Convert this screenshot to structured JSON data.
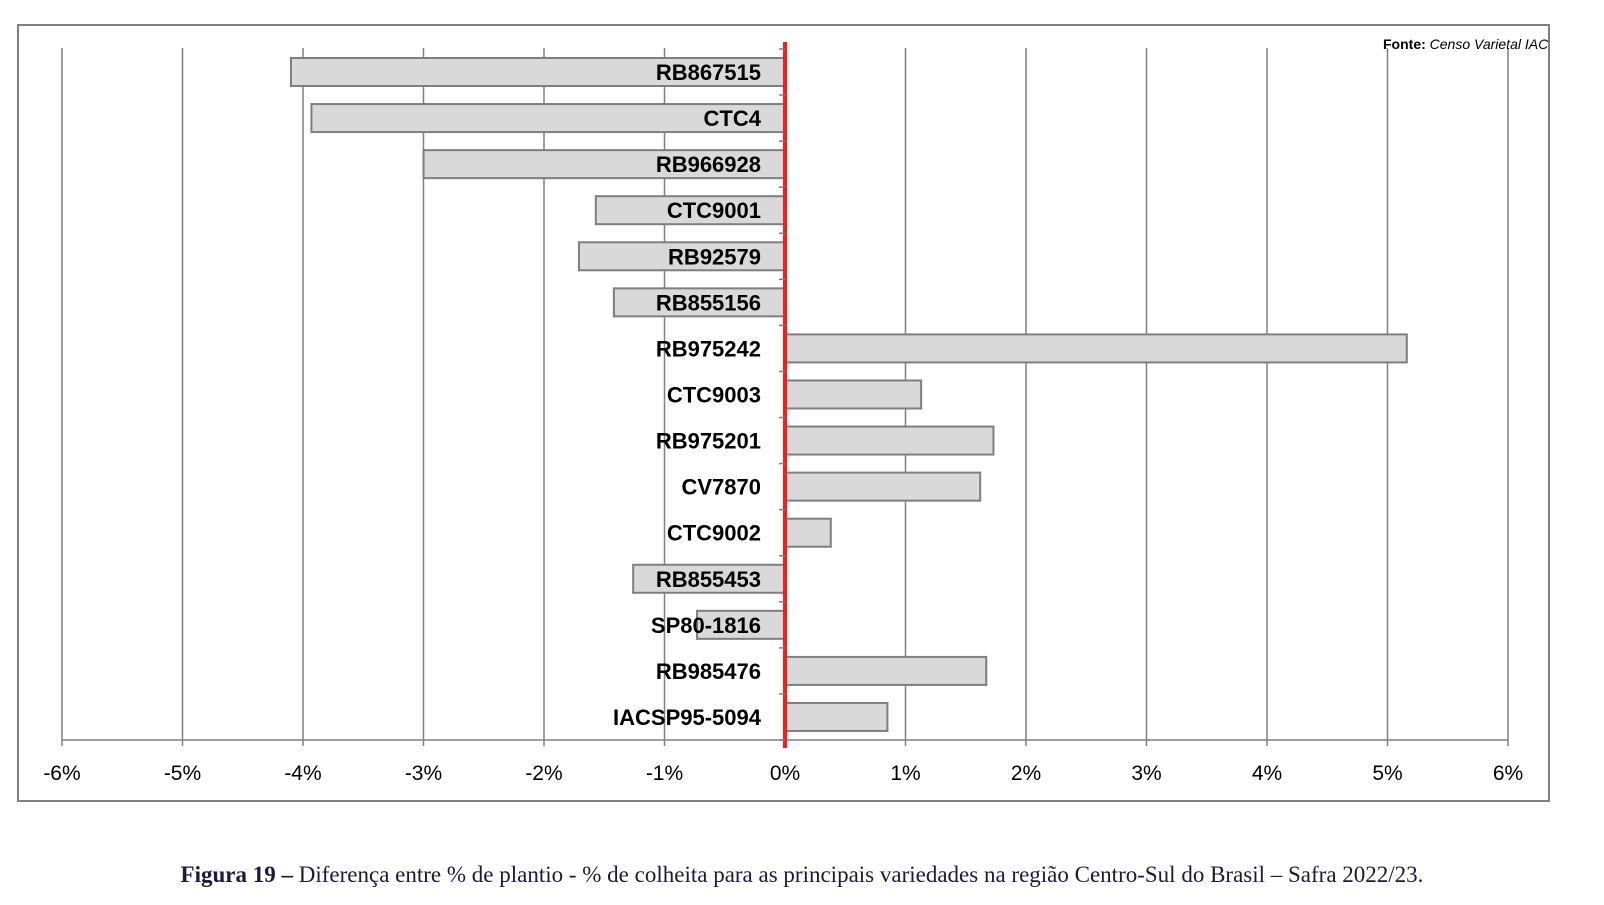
{
  "source": {
    "label": "Fonte:",
    "value": "Censo Varietal IAC"
  },
  "caption": {
    "label": "Figura 19 –",
    "text": "Diferença entre % de plantio - % de colheita para as principais variedades na região Centro-Sul do Brasil – Safra 2022/23."
  },
  "colors": {
    "bar_fill": "#d9d9d9",
    "bar_stroke": "#7f7f7f",
    "zero_line": "#ff1a1a",
    "grid": "#808080",
    "frame": "#808080"
  },
  "chart_data": {
    "type": "bar",
    "orientation": "horizontal",
    "categories": [
      "RB867515",
      "CTC4",
      "RB966928",
      "CTC9001",
      "RB92579",
      "RB855156",
      "RB975242",
      "CTC9003",
      "RB975201",
      "CV7870",
      "CTC9002",
      "RB855453",
      "SP80-1816",
      "RB985476",
      "IACSP95-5094"
    ],
    "values": [
      -4.1,
      -3.93,
      -3.0,
      -1.57,
      -1.71,
      -1.42,
      5.16,
      1.13,
      1.73,
      1.62,
      0.38,
      -1.26,
      -0.73,
      1.67,
      0.85
    ],
    "xlim": [
      -6,
      6
    ],
    "xticks": [
      -6,
      -5,
      -4,
      -3,
      -2,
      -1,
      0,
      1,
      2,
      3,
      4,
      5,
      6
    ],
    "xtick_labels": [
      "-6%",
      "-5%",
      "-4%",
      "-3%",
      "-2%",
      "-1%",
      "0%",
      "1%",
      "2%",
      "3%",
      "4%",
      "5%",
      "6%"
    ],
    "grid": true,
    "title": "",
    "xlabel": "",
    "ylabel": ""
  }
}
